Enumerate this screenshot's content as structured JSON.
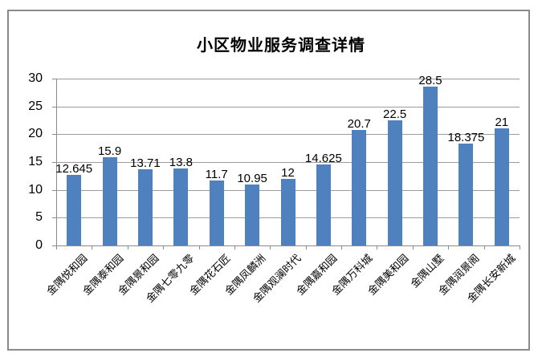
{
  "chart_data": {
    "type": "bar",
    "title": "小区物业服务调查详情",
    "categories": [
      "金隅悦和园",
      "金隅泰和园",
      "金隅景和园",
      "金隅七零九零",
      "金隅花石匠",
      "金隅凤麟洲",
      "金隅观澜时代",
      "金隅嘉和园",
      "金隅万科城",
      "金隅美和园",
      "金隅山墅",
      "金隅润景阁",
      "金隅长安新城"
    ],
    "values": [
      12.645,
      15.9,
      13.71,
      13.8,
      11.7,
      10.95,
      12,
      14.625,
      20.7,
      22.5,
      28.5,
      18.375,
      21
    ],
    "value_labels": [
      "12.645",
      "15.9",
      "13.71",
      "13.8",
      "11.7",
      "10.95",
      "12",
      "14.625",
      "20.7",
      "22.5",
      "28.5",
      "18.375",
      "21"
    ],
    "xlabel": "",
    "ylabel": "",
    "ylim": [
      0,
      30
    ],
    "yticks": [
      0,
      5,
      10,
      15,
      20,
      25,
      30
    ],
    "grid": true,
    "legend_position": "none",
    "x_tick_label_rotation_deg": 45,
    "colors": {
      "bar": "#4e81bd",
      "gridline": "#9c9c9c",
      "axis": "#8c8c8c",
      "frame_border": "#8a8a8a",
      "text": "#000000",
      "background": "#ffffff"
    }
  }
}
